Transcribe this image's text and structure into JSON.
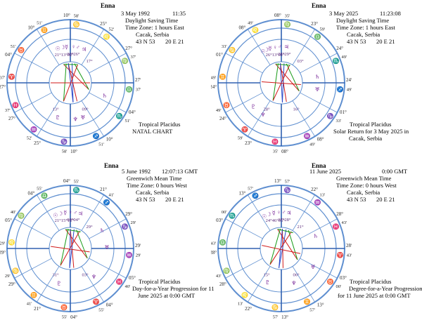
{
  "charts": [
    {
      "name": "Enna",
      "date": "3 May 1992",
      "time": "11:35",
      "zone_line1": "Daylight Saving Time",
      "zone_line2": "Time Zone: 1 hours East",
      "place": "Cacak, Serbia",
      "coords_lat": "43 N 53",
      "coords_lon": "20 E 21",
      "system": "Tropical Placidus",
      "caption": [
        "NATAL CHART"
      ],
      "cusps": [
        "27°",
        "04°",
        "10°",
        "10°",
        "25°",
        "27°",
        "27°",
        "04°",
        "10°",
        "10°",
        "25°",
        "27°"
      ],
      "minutes": [
        "37'",
        "51'",
        "51'",
        "58'",
        "52'",
        "37'",
        "37'",
        "51'",
        "51'",
        "58'",
        "52'",
        "37'"
      ],
      "planet_degs": [
        "21°13°02°",
        "30°26°",
        "17°",
        "09°",
        "13°"
      ]
    },
    {
      "name": "Enna",
      "date": "3 May 2025",
      "time": "11:23:08",
      "zone_line1": "Daylight Saving Time",
      "zone_line2": "Time Zone: 1 hours East",
      "place": "Cacak, Serbia",
      "coords_lat": "43 N 53",
      "coords_lon": "20 E 21",
      "system": "Tropical Placidus",
      "caption": [
        "Solar Return for 3 May 2025 in",
        "Cacak, Serbia"
      ],
      "cusps": [
        "24°",
        "01°",
        "08°",
        "08°",
        "23°",
        "24°",
        "24°",
        "01°",
        "08°",
        "08°",
        "23°",
        "24°"
      ],
      "minutes": [
        "49'",
        "33'",
        "49'",
        "35'",
        "59'",
        "49'",
        "49'",
        "33'",
        "49'",
        "35'",
        "59'",
        "49'"
      ],
      "planet_degs": [
        "26°13°01°",
        "28°29°",
        "03°",
        "16°",
        "28°"
      ]
    },
    {
      "name": "Enna",
      "date": "5 June 1992",
      "time": "12:07:13 GMT",
      "zone_line1": "Greenwich Mean Time",
      "zone_line2": "Time Zone: 0 hours West",
      "place": "Cacak, Serbia",
      "coords_lat": "43 N 53",
      "coords_lon": "20 E 21",
      "system": "Tropical Placidus",
      "caption": [
        "Day-for-a-Year Progression  for 11",
        "June 2025 at 0:00 GMT"
      ],
      "cusps": [
        "29°",
        "05°",
        "04°",
        "04°",
        "21°",
        "29°",
        "29°",
        "05°",
        "04°",
        "04°",
        "21°",
        "29°"
      ],
      "minutes": [
        "29'",
        "40'",
        "55'",
        "55'",
        "41'",
        "29'",
        "29'",
        "40'",
        "55'",
        "55'",
        "41'",
        "29'"
      ],
      "planet_degs": [
        "21°15°12°",
        "08°04°",
        "29°",
        "03°",
        "31°"
      ]
    },
    {
      "name": "Enna",
      "date": "11 June 2025",
      "time": "0:00 GMT",
      "zone_line1": "Greenwich Mean Time",
      "zone_line2": "Time Zone: 0 hours West",
      "place": "Cacak, Serbia",
      "coords_lat": "43 N 53",
      "coords_lon": "20 E 21",
      "system": "Tropical Placidus",
      "caption": [
        "Degree-for-a-Year Progression",
        "for 11 June 2025 at 0:00 GMT"
      ],
      "cusps": [
        "28°",
        "03°",
        "13°",
        "13°",
        "22°",
        "28°",
        "28°",
        "03°",
        "13°",
        "13°",
        "22°",
        "28°"
      ],
      "minutes": [
        "43'",
        "00'",
        "57'",
        "57'",
        "13'",
        "43'",
        "43'",
        "00'",
        "57'",
        "57'",
        "13'",
        "43'"
      ],
      "planet_degs": [
        "24°46°05°",
        "37°28°",
        "21°",
        "06°",
        "15°"
      ]
    }
  ],
  "colors": {
    "ring": "#5f8fd0",
    "fire": "#d02020",
    "earth": "#2a8a2a",
    "air": "#c6a800",
    "water": "#2040c0",
    "planet": "#7a2a9a",
    "aspect_red": "#d01818",
    "aspect_green": "#159a15",
    "aspect_blue": "#2848c8"
  }
}
